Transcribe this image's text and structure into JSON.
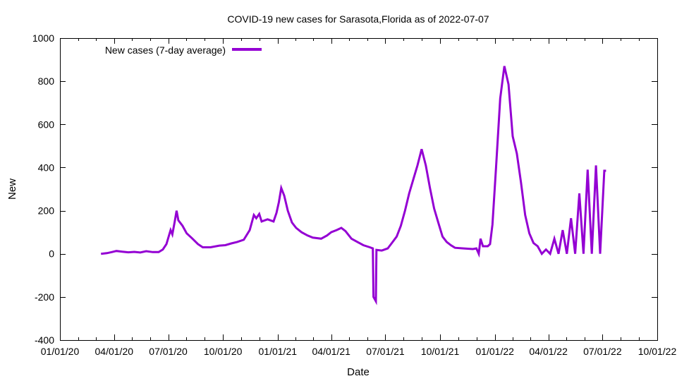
{
  "chart_data": {
    "type": "line",
    "title": "COVID-19 new cases for Sarasota,Florida as of 2022-07-07",
    "xlabel": "Date",
    "ylabel": "New",
    "ylim": [
      -400,
      1000
    ],
    "xlim": [
      "2020-01-01",
      "2022-10-01"
    ],
    "y_ticks": [
      -400,
      -200,
      0,
      200,
      400,
      600,
      800,
      1000
    ],
    "x_ticks": [
      {
        "date": "2020-01-01",
        "label": "01/01/20"
      },
      {
        "date": "2020-04-01",
        "label": "04/01/20"
      },
      {
        "date": "2020-07-01",
        "label": "07/01/20"
      },
      {
        "date": "2020-10-01",
        "label": "10/01/20"
      },
      {
        "date": "2021-01-01",
        "label": "01/01/21"
      },
      {
        "date": "2021-04-01",
        "label": "04/01/21"
      },
      {
        "date": "2021-07-01",
        "label": "07/01/21"
      },
      {
        "date": "2021-10-01",
        "label": "10/01/21"
      },
      {
        "date": "2022-01-01",
        "label": "01/01/22"
      },
      {
        "date": "2022-04-01",
        "label": "04/01/22"
      },
      {
        "date": "2022-07-01",
        "label": "07/01/22"
      },
      {
        "date": "2022-10-01",
        "label": "10/01/22"
      }
    ],
    "legend_position": "top-left",
    "series": [
      {
        "name": "New cases (7-day average)",
        "color": "#9400D3",
        "points": [
          [
            "2020-03-10",
            0
          ],
          [
            "2020-03-20",
            3
          ],
          [
            "2020-03-28",
            8
          ],
          [
            "2020-04-05",
            13
          ],
          [
            "2020-04-15",
            10
          ],
          [
            "2020-04-25",
            7
          ],
          [
            "2020-05-05",
            9
          ],
          [
            "2020-05-15",
            6
          ],
          [
            "2020-05-25",
            12
          ],
          [
            "2020-06-05",
            8
          ],
          [
            "2020-06-15",
            8
          ],
          [
            "2020-06-22",
            20
          ],
          [
            "2020-06-28",
            45
          ],
          [
            "2020-07-05",
            110
          ],
          [
            "2020-07-08",
            90
          ],
          [
            "2020-07-12",
            150
          ],
          [
            "2020-07-15",
            200
          ],
          [
            "2020-07-18",
            155
          ],
          [
            "2020-07-25",
            130
          ],
          [
            "2020-08-01",
            95
          ],
          [
            "2020-08-10",
            72
          ],
          [
            "2020-08-20",
            45
          ],
          [
            "2020-08-28",
            30
          ],
          [
            "2020-09-10",
            30
          ],
          [
            "2020-09-25",
            38
          ],
          [
            "2020-10-05",
            40
          ],
          [
            "2020-10-15",
            48
          ],
          [
            "2020-10-25",
            55
          ],
          [
            "2020-11-05",
            65
          ],
          [
            "2020-11-15",
            110
          ],
          [
            "2020-11-22",
            180
          ],
          [
            "2020-11-26",
            165
          ],
          [
            "2020-12-01",
            185
          ],
          [
            "2020-12-05",
            150
          ],
          [
            "2020-12-15",
            160
          ],
          [
            "2020-12-25",
            150
          ],
          [
            "2020-12-30",
            190
          ],
          [
            "2021-01-03",
            240
          ],
          [
            "2021-01-07",
            305
          ],
          [
            "2021-01-12",
            270
          ],
          [
            "2021-01-18",
            200
          ],
          [
            "2021-01-25",
            145
          ],
          [
            "2021-02-01",
            120
          ],
          [
            "2021-02-10",
            100
          ],
          [
            "2021-02-20",
            85
          ],
          [
            "2021-03-01",
            75
          ],
          [
            "2021-03-15",
            70
          ],
          [
            "2021-03-25",
            85
          ],
          [
            "2021-04-01",
            100
          ],
          [
            "2021-04-10",
            110
          ],
          [
            "2021-04-18",
            120
          ],
          [
            "2021-04-25",
            105
          ],
          [
            "2021-05-05",
            70
          ],
          [
            "2021-05-15",
            55
          ],
          [
            "2021-05-25",
            40
          ],
          [
            "2021-06-05",
            30
          ],
          [
            "2021-06-10",
            25
          ],
          [
            "2021-06-11",
            -200
          ],
          [
            "2021-06-15",
            -220
          ],
          [
            "2021-06-16",
            18
          ],
          [
            "2021-06-25",
            15
          ],
          [
            "2021-07-05",
            25
          ],
          [
            "2021-07-12",
            50
          ],
          [
            "2021-07-20",
            80
          ],
          [
            "2021-07-27",
            130
          ],
          [
            "2021-08-03",
            200
          ],
          [
            "2021-08-10",
            280
          ],
          [
            "2021-08-17",
            345
          ],
          [
            "2021-08-24",
            410
          ],
          [
            "2021-08-31",
            485
          ],
          [
            "2021-09-07",
            410
          ],
          [
            "2021-09-14",
            305
          ],
          [
            "2021-09-21",
            210
          ],
          [
            "2021-09-28",
            145
          ],
          [
            "2021-10-05",
            80
          ],
          [
            "2021-10-12",
            55
          ],
          [
            "2021-10-19",
            40
          ],
          [
            "2021-10-26",
            28
          ],
          [
            "2021-11-10",
            25
          ],
          [
            "2021-11-25",
            22
          ],
          [
            "2021-12-01",
            25
          ],
          [
            "2021-12-05",
            0
          ],
          [
            "2021-12-08",
            70
          ],
          [
            "2021-12-12",
            35
          ],
          [
            "2021-12-20",
            35
          ],
          [
            "2021-12-24",
            45
          ],
          [
            "2021-12-28",
            135
          ],
          [
            "2022-01-03",
            400
          ],
          [
            "2022-01-10",
            720
          ],
          [
            "2022-01-17",
            870
          ],
          [
            "2022-01-24",
            785
          ],
          [
            "2022-01-31",
            545
          ],
          [
            "2022-02-07",
            465
          ],
          [
            "2022-02-14",
            330
          ],
          [
            "2022-02-21",
            180
          ],
          [
            "2022-02-28",
            95
          ],
          [
            "2022-03-07",
            50
          ],
          [
            "2022-03-14",
            35
          ],
          [
            "2022-03-21",
            0
          ],
          [
            "2022-03-28",
            20
          ],
          [
            "2022-04-04",
            0
          ],
          [
            "2022-04-11",
            70
          ],
          [
            "2022-04-18",
            0
          ],
          [
            "2022-04-25",
            110
          ],
          [
            "2022-05-02",
            0
          ],
          [
            "2022-05-09",
            165
          ],
          [
            "2022-05-16",
            0
          ],
          [
            "2022-05-23",
            280
          ],
          [
            "2022-05-30",
            0
          ],
          [
            "2022-06-06",
            390
          ],
          [
            "2022-06-13",
            0
          ],
          [
            "2022-06-20",
            410
          ],
          [
            "2022-06-27",
            0
          ],
          [
            "2022-07-04",
            385
          ],
          [
            "2022-07-07",
            385
          ]
        ]
      }
    ]
  }
}
